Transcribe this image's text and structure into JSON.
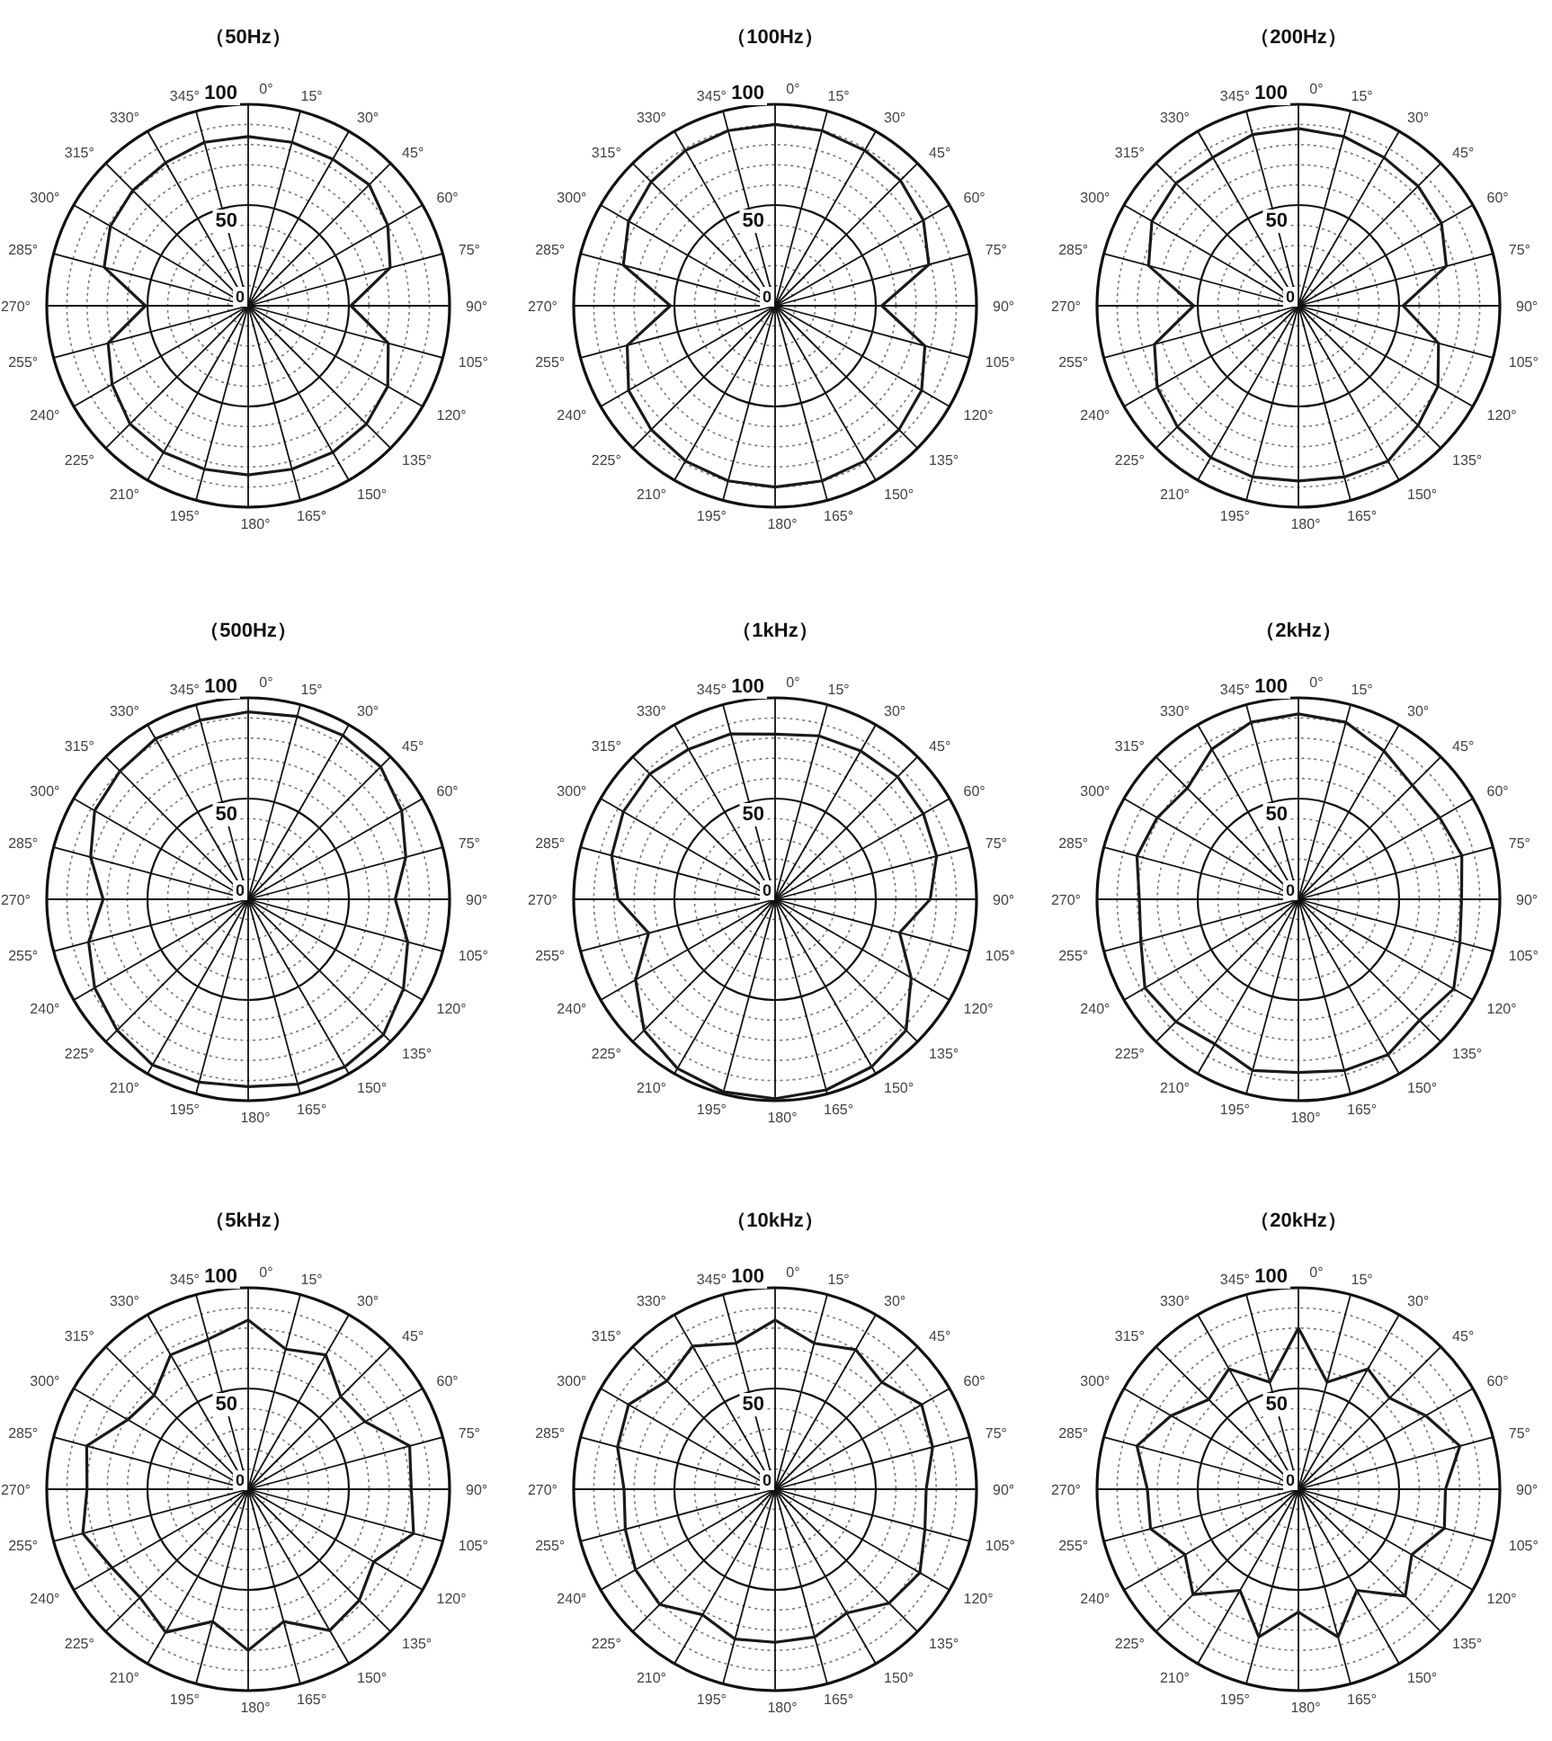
{
  "chart_data": [
    {
      "type": "radar",
      "title": "（50Hz）",
      "categories": [
        "0°",
        "15°",
        "30°",
        "45°",
        "60°",
        "75°",
        "90°",
        "105°",
        "120°",
        "135°",
        "150°",
        "165°",
        "180°",
        "195°",
        "210°",
        "225°",
        "240°",
        "255°",
        "270°",
        "285°",
        "300°",
        "315°",
        "330°",
        "345°"
      ],
      "ylim": [
        0,
        100
      ],
      "yticks": [
        0,
        50,
        100
      ],
      "grid": true,
      "line_style": "solid",
      "series": [
        {
          "color": "#1a1a1a",
          "values": [
            84,
            84,
            84,
            85,
            80,
            73,
            51,
            72,
            80,
            83,
            84,
            84,
            84,
            84,
            84,
            83,
            78,
            72,
            51,
            74,
            79,
            81,
            82,
            84
          ]
        }
      ]
    },
    {
      "type": "radar",
      "title": "（100Hz）",
      "categories": [
        "0°",
        "15°",
        "30°",
        "45°",
        "60°",
        "75°",
        "90°",
        "105°",
        "120°",
        "135°",
        "150°",
        "165°",
        "180°",
        "195°",
        "210°",
        "225°",
        "240°",
        "255°",
        "270°",
        "285°",
        "300°",
        "315°",
        "330°",
        "345°"
      ],
      "ylim": [
        0,
        100
      ],
      "yticks": [
        0,
        50,
        100
      ],
      "grid": true,
      "line_style": "solid",
      "series": [
        {
          "color": "#1a1a1a",
          "values": [
            90,
            90,
            89,
            88,
            85,
            79,
            53,
            77,
            84,
            87,
            89,
            90,
            90,
            90,
            89,
            87,
            84,
            76,
            52,
            78,
            84,
            87,
            89,
            90
          ]
        }
      ]
    },
    {
      "type": "radar",
      "title": "（200Hz）",
      "categories": [
        "0°",
        "15°",
        "30°",
        "45°",
        "60°",
        "75°",
        "90°",
        "105°",
        "120°",
        "135°",
        "150°",
        "165°",
        "180°",
        "195°",
        "210°",
        "225°",
        "240°",
        "255°",
        "270°",
        "285°",
        "300°",
        "315°",
        "330°",
        "345°"
      ],
      "ylim": [
        0,
        100
      ],
      "yticks": [
        0,
        50,
        100
      ],
      "grid": true,
      "line_style": "solid",
      "series": [
        {
          "color": "#1a1a1a",
          "values": [
            88,
            87,
            85,
            84,
            82,
            76,
            52,
            72,
            80,
            84,
            89,
            88,
            87,
            88,
            87,
            85,
            81,
            74,
            52,
            77,
            84,
            86,
            85,
            88
          ]
        }
      ]
    },
    {
      "type": "radar",
      "title": "（500Hz）",
      "categories": [
        "0°",
        "15°",
        "30°",
        "45°",
        "60°",
        "75°",
        "90°",
        "105°",
        "120°",
        "135°",
        "150°",
        "165°",
        "180°",
        "195°",
        "210°",
        "225°",
        "240°",
        "255°",
        "270°",
        "285°",
        "300°",
        "315°",
        "330°",
        "345°"
      ],
      "ylim": [
        0,
        100
      ],
      "yticks": [
        0,
        50,
        100
      ],
      "grid": true,
      "line_style": "solid",
      "series": [
        {
          "color": "#1a1a1a",
          "values": [
            93,
            94,
            94,
            93,
            88,
            81,
            73,
            82,
            89,
            95,
            96,
            95,
            93,
            94,
            95,
            92,
            88,
            82,
            72,
            81,
            88,
            90,
            92,
            92
          ]
        }
      ]
    },
    {
      "type": "radar",
      "title": "（1kHz）",
      "categories": [
        "0°",
        "15°",
        "30°",
        "45°",
        "60°",
        "75°",
        "90°",
        "105°",
        "120°",
        "135°",
        "150°",
        "165°",
        "180°",
        "195°",
        "210°",
        "225°",
        "240°",
        "255°",
        "270°",
        "285°",
        "300°",
        "315°",
        "330°",
        "345°"
      ],
      "ylim": [
        0,
        100
      ],
      "yticks": [
        0,
        50,
        100
      ],
      "grid": true,
      "line_style": "solid",
      "series": [
        {
          "color": "#1a1a1a",
          "values": [
            82,
            84,
            85,
            86,
            85,
            83,
            77,
            64,
            78,
            92,
            96,
            98,
            99,
            99,
            97,
            92,
            80,
            65,
            78,
            84,
            87,
            88,
            86,
            85
          ]
        }
      ]
    },
    {
      "type": "radar",
      "title": "（2kHz）",
      "categories": [
        "0°",
        "15°",
        "30°",
        "45°",
        "60°",
        "75°",
        "90°",
        "105°",
        "120°",
        "135°",
        "150°",
        "165°",
        "180°",
        "195°",
        "210°",
        "225°",
        "240°",
        "255°",
        "270°",
        "285°",
        "300°",
        "315°",
        "330°",
        "345°"
      ],
      "ylim": [
        0,
        100
      ],
      "yticks": [
        0,
        50,
        100
      ],
      "grid": true,
      "line_style": "solid",
      "series": [
        {
          "color": "#1a1a1a",
          "values": [
            92,
            91,
            85,
            80,
            81,
            84,
            81,
            83,
            89,
            85,
            89,
            88,
            86,
            88,
            83,
            86,
            88,
            81,
            79,
            83,
            81,
            78,
            86,
            91
          ]
        }
      ]
    },
    {
      "type": "radar",
      "title": "（5kHz）",
      "categories": [
        "0°",
        "15°",
        "30°",
        "45°",
        "60°",
        "75°",
        "90°",
        "105°",
        "120°",
        "135°",
        "150°",
        "165°",
        "180°",
        "195°",
        "210°",
        "225°",
        "240°",
        "255°",
        "270°",
        "285°",
        "300°",
        "315°",
        "330°",
        "345°"
      ],
      "ylim": [
        0,
        100
      ],
      "yticks": [
        0,
        50,
        100
      ],
      "grid": true,
      "line_style": "solid",
      "series": [
        {
          "color": "#1a1a1a",
          "values": [
            84,
            72,
            77,
            65,
            67,
            83,
            81,
            85,
            72,
            78,
            81,
            68,
            80,
            68,
            82,
            76,
            78,
            85,
            80,
            83,
            69,
            66,
            77,
            77
          ]
        }
      ]
    },
    {
      "type": "radar",
      "title": "（10kHz）",
      "categories": [
        "0°",
        "15°",
        "30°",
        "45°",
        "60°",
        "75°",
        "90°",
        "105°",
        "120°",
        "135°",
        "150°",
        "165°",
        "180°",
        "195°",
        "210°",
        "225°",
        "240°",
        "255°",
        "270°",
        "285°",
        "300°",
        "315°",
        "330°",
        "345°"
      ],
      "ylim": [
        0,
        100
      ],
      "yticks": [
        0,
        50,
        100
      ],
      "grid": true,
      "line_style": "solid",
      "series": [
        {
          "color": "#1a1a1a",
          "values": [
            84,
            75,
            80,
            75,
            84,
            81,
            75,
            77,
            83,
            80,
            71,
            76,
            76,
            77,
            72,
            81,
            80,
            77,
            75,
            81,
            84,
            76,
            82,
            75
          ]
        }
      ]
    },
    {
      "type": "radar",
      "title": "（20kHz）",
      "categories": [
        "0°",
        "15°",
        "30°",
        "45°",
        "60°",
        "75°",
        "90°",
        "105°",
        "120°",
        "135°",
        "150°",
        "165°",
        "180°",
        "195°",
        "210°",
        "225°",
        "240°",
        "255°",
        "270°",
        "285°",
        "300°",
        "315°",
        "330°",
        "345°"
      ],
      "ylim": [
        0,
        100
      ],
      "yticks": [
        0,
        50,
        100
      ],
      "grid": true,
      "line_style": "solid",
      "series": [
        {
          "color": "#1a1a1a",
          "values": [
            80,
            55,
            69,
            64,
            73,
            83,
            73,
            75,
            65,
            75,
            58,
            76,
            61,
            76,
            58,
            74,
            65,
            76,
            75,
            83,
            73,
            63,
            69,
            55
          ]
        }
      ]
    }
  ]
}
